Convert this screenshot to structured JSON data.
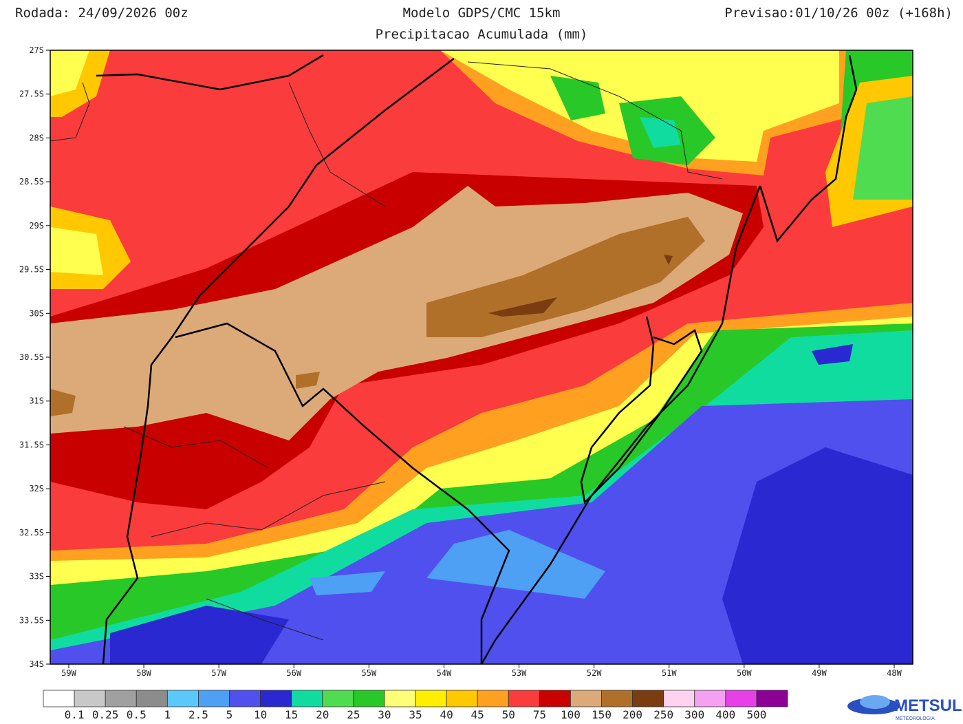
{
  "header": {
    "run": "Rodada: 24/09/2026 00z",
    "model": "Modelo GDPS/CMC 15km",
    "forecast": "Previsao:01/10/26 00z (+168h)",
    "subtitle": "Precipitacao Acumulada (mm)"
  },
  "map": {
    "lat_labels": [
      "27S",
      "27.5S",
      "28S",
      "28.5S",
      "29S",
      "29.5S",
      "30S",
      "30.5S",
      "31S",
      "31.5S",
      "32S",
      "32.5S",
      "33S",
      "33.5S",
      "34S"
    ],
    "lon_labels": [
      "59W",
      "58W",
      "57W",
      "56W",
      "55W",
      "54W",
      "53W",
      "52W",
      "51W",
      "50W",
      "49W",
      "48W"
    ]
  },
  "colorbar": {
    "colors": [
      "#ffffff",
      "#c8c8c8",
      "#a0a0a0",
      "#8c8c8c",
      "#5ac8fa",
      "#4ea0f5",
      "#5050ee",
      "#2a28d0",
      "#10dca0",
      "#50dc50",
      "#28c828",
      "#ffff78",
      "#ffee00",
      "#ffc800",
      "#ffa020",
      "#fa3c3c",
      "#c80000",
      "#dcaa78",
      "#b0702a",
      "#7a3c10",
      "#ffd2f0",
      "#f5a0f0",
      "#e640e6",
      "#8c0096"
    ],
    "labels": [
      "0.1",
      "0.25",
      "0.5",
      "1",
      "2.5",
      "5",
      "10",
      "15",
      "20",
      "25",
      "30",
      "35",
      "40",
      "45",
      "50",
      "75",
      "100",
      "150",
      "200",
      "250",
      "300",
      "400",
      "500"
    ]
  },
  "logo": {
    "name": "METSUL",
    "tagline": "METEOROLOGIA"
  }
}
